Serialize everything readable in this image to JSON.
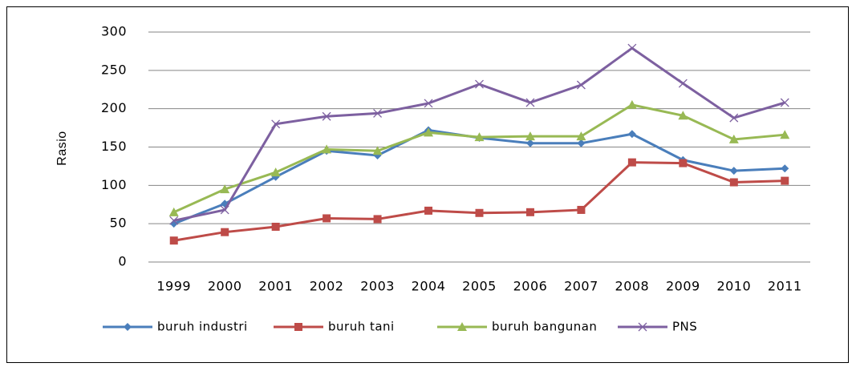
{
  "chart_data": {
    "type": "line",
    "y_label": "Rasio",
    "categories": [
      "1999",
      "2000",
      "2001",
      "2002",
      "2003",
      "2004",
      "2005",
      "2006",
      "2007",
      "2008",
      "2009",
      "2010",
      "2011"
    ],
    "series": [
      {
        "name": "buruh industri",
        "color": "#4a7ebb",
        "marker": "diamond",
        "values": [
          50,
          76,
          111,
          145,
          139,
          172,
          162,
          155,
          155,
          167,
          133,
          119,
          122
        ]
      },
      {
        "name": "buruh tani",
        "color": "#be4b48",
        "marker": "square",
        "values": [
          28,
          39,
          46,
          57,
          56,
          67,
          64,
          65,
          68,
          130,
          129,
          104,
          106
        ]
      },
      {
        "name": "buruh bangunan",
        "color": "#98b954",
        "marker": "triangle",
        "values": [
          65,
          95,
          117,
          147,
          145,
          169,
          163,
          164,
          164,
          205,
          191,
          160,
          166
        ]
      },
      {
        "name": "PNS",
        "color": "#7d60a0",
        "marker": "x",
        "values": [
          54,
          68,
          180,
          190,
          194,
          207,
          232,
          208,
          231,
          279,
          233,
          188,
          208
        ]
      }
    ],
    "ylim": [
      0,
      300
    ],
    "yticks": [
      0,
      50,
      100,
      150,
      200,
      250,
      300
    ],
    "grid": true,
    "legend": "bottom"
  }
}
